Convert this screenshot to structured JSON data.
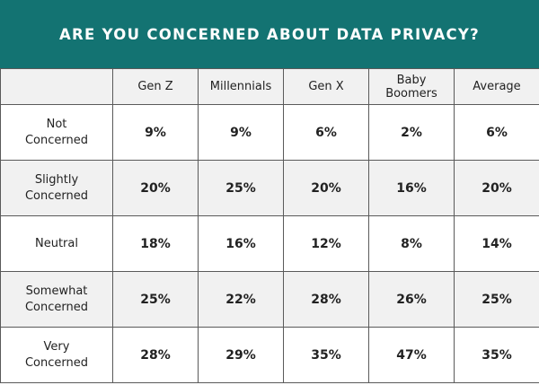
{
  "chart_data": {
    "type": "table",
    "title": "ARE YOU CONCERNED ABOUT DATA PRIVACY?",
    "columns": [
      "Gen Z",
      "Millennials",
      "Gen X",
      "Baby Boomers",
      "Average"
    ],
    "rows": [
      {
        "label": "Not Concerned",
        "values": [
          "9%",
          "9%",
          "6%",
          "2%",
          "6%"
        ]
      },
      {
        "label": "Slightly Concerned",
        "values": [
          "20%",
          "25%",
          "20%",
          "16%",
          "20%"
        ]
      },
      {
        "label": "Neutral",
        "values": [
          "18%",
          "16%",
          "12%",
          "8%",
          "14%"
        ]
      },
      {
        "label": "Somewhat Concerned",
        "values": [
          "25%",
          "22%",
          "28%",
          "26%",
          "25%"
        ]
      },
      {
        "label": "Very Concerned",
        "values": [
          "28%",
          "29%",
          "35%",
          "47%",
          "35%"
        ]
      }
    ]
  },
  "colors": {
    "title_background": "#137372",
    "title_text": "#ffffff",
    "shaded_row": "#f1f1f1",
    "grid_line": "#5a5a5a"
  }
}
